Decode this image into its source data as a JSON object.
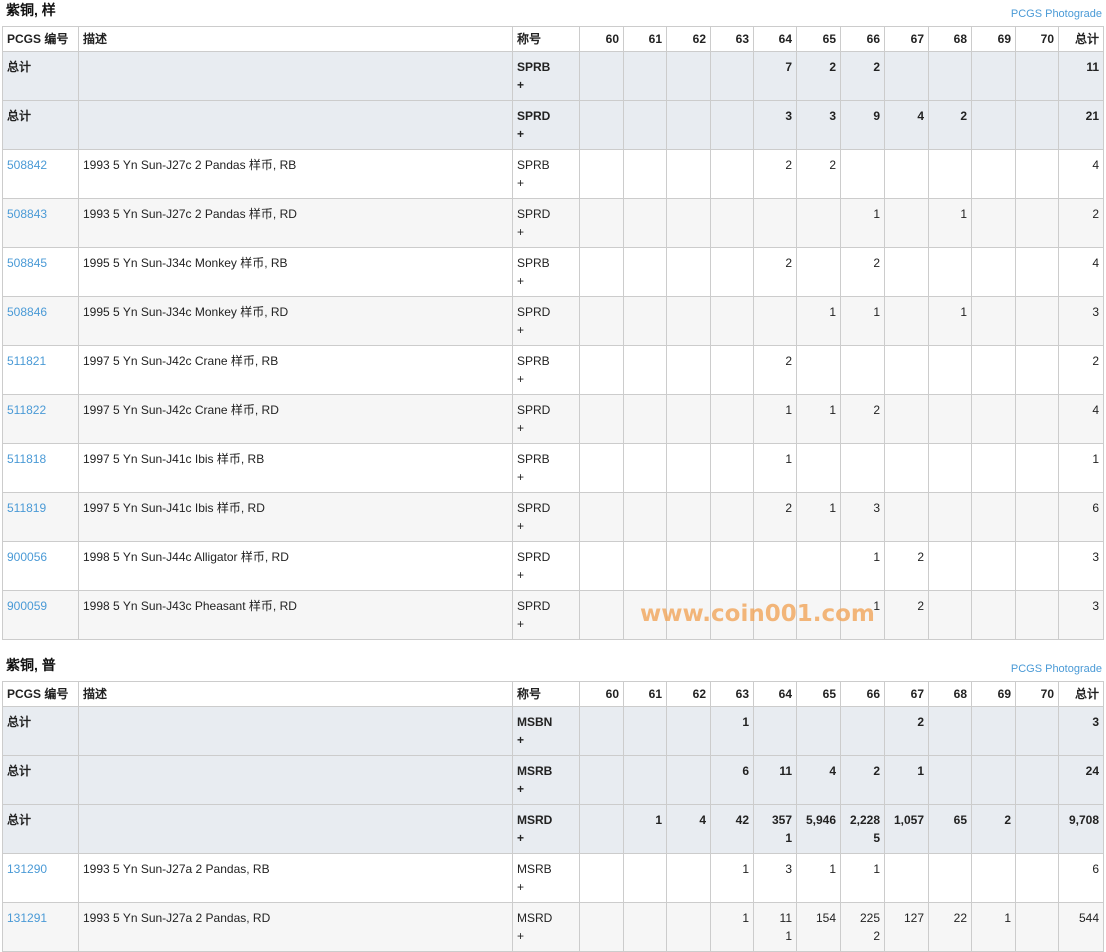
{
  "columns": [
    "PCGS 编号",
    "描述",
    "称号",
    "60",
    "61",
    "62",
    "63",
    "64",
    "65",
    "66",
    "67",
    "68",
    "69",
    "70",
    "总计"
  ],
  "sections": [
    {
      "title": "紫铜, 样",
      "photograde_link": "PCGS Photograde",
      "totals": [
        {
          "label": "总计",
          "designation": "SPRB\n+",
          "grades": [
            "",
            "",
            "",
            "",
            "7",
            "2",
            "2",
            "",
            "",
            "",
            ""
          ],
          "total": "11"
        },
        {
          "label": "总计",
          "designation": "SPRD\n+",
          "grades": [
            "",
            "",
            "",
            "",
            "3",
            "3",
            "9",
            "4",
            "2",
            "",
            ""
          ],
          "total": "21"
        }
      ],
      "rows": [
        {
          "pcgs": "508842",
          "description": "1993 5 Yn Sun-J27c 2 Pandas 样币, RB",
          "designation": "SPRB\n+",
          "grades": [
            "",
            "",
            "",
            "",
            "2",
            "2",
            "",
            "",
            "",
            "",
            ""
          ],
          "total": "4"
        },
        {
          "pcgs": "508843",
          "description": "1993 5 Yn Sun-J27c 2 Pandas 样币, RD",
          "designation": "SPRD\n+",
          "grades": [
            "",
            "",
            "",
            "",
            "",
            "",
            "1",
            "",
            "1",
            "",
            ""
          ],
          "total": "2"
        },
        {
          "pcgs": "508845",
          "description": "1995 5 Yn Sun-J34c Monkey 样币, RB",
          "designation": "SPRB\n+",
          "grades": [
            "",
            "",
            "",
            "",
            "2",
            "",
            "2",
            "",
            "",
            "",
            ""
          ],
          "total": "4"
        },
        {
          "pcgs": "508846",
          "description": "1995 5 Yn Sun-J34c Monkey 样币, RD",
          "designation": "SPRD\n+",
          "grades": [
            "",
            "",
            "",
            "",
            "",
            "1",
            "1",
            "",
            "1",
            "",
            ""
          ],
          "total": "3"
        },
        {
          "pcgs": "511821",
          "description": "1997 5 Yn Sun-J42c Crane 样币, RB",
          "designation": "SPRB\n+",
          "grades": [
            "",
            "",
            "",
            "",
            "2",
            "",
            "",
            "",
            "",
            "",
            ""
          ],
          "total": "2"
        },
        {
          "pcgs": "511822",
          "description": "1997 5 Yn Sun-J42c Crane 样币, RD",
          "designation": "SPRD\n+",
          "grades": [
            "",
            "",
            "",
            "",
            "1",
            "1",
            "2",
            "",
            "",
            "",
            ""
          ],
          "total": "4"
        },
        {
          "pcgs": "511818",
          "description": "1997 5 Yn Sun-J41c Ibis 样币, RB",
          "designation": "SPRB\n+",
          "grades": [
            "",
            "",
            "",
            "",
            "1",
            "",
            "",
            "",
            "",
            "",
            ""
          ],
          "total": "1"
        },
        {
          "pcgs": "511819",
          "description": "1997 5 Yn Sun-J41c Ibis 样币, RD",
          "designation": "SPRD\n+",
          "grades": [
            "",
            "",
            "",
            "",
            "2",
            "1",
            "3",
            "",
            "",
            "",
            ""
          ],
          "total": "6"
        },
        {
          "pcgs": "900056",
          "description": "1998 5 Yn Sun-J44c Alligator 样币, RD",
          "designation": "SPRD\n+",
          "grades": [
            "",
            "",
            "",
            "",
            "",
            "",
            "1",
            "2",
            "",
            "",
            ""
          ],
          "total": "3"
        },
        {
          "pcgs": "900059",
          "description": "1998 5 Yn Sun-J43c Pheasant 样币, RD",
          "designation": "SPRD\n+",
          "grades": [
            "",
            "",
            "",
            "",
            "",
            "",
            "1",
            "2",
            "",
            "",
            ""
          ],
          "total": "3"
        }
      ]
    },
    {
      "title": "紫铜, 普",
      "photograde_link": "PCGS Photograde",
      "totals": [
        {
          "label": "总计",
          "designation": "MSBN\n+",
          "grades": [
            "",
            "",
            "",
            "1",
            "",
            "",
            "",
            "2",
            "",
            "",
            ""
          ],
          "total": "3"
        },
        {
          "label": "总计",
          "designation": "MSRB\n+",
          "grades": [
            "",
            "",
            "",
            "6",
            "11",
            "4",
            "2",
            "1",
            "",
            "",
            ""
          ],
          "total": "24"
        },
        {
          "label": "总计",
          "designation": "MSRD\n+",
          "grades": [
            "",
            "1",
            "4",
            "42",
            "357\n1",
            "5,946",
            "2,228\n5",
            "1,057",
            "65",
            "2",
            ""
          ],
          "total": "9,708"
        }
      ],
      "rows": [
        {
          "pcgs": "131290",
          "description": "1993 5 Yn Sun-J27a 2 Pandas, RB",
          "designation": "MSRB\n+",
          "grades": [
            "",
            "",
            "",
            "1",
            "3",
            "1",
            "1",
            "",
            "",
            "",
            ""
          ],
          "total": "6"
        },
        {
          "pcgs": "131291",
          "description": "1993 5 Yn Sun-J27a 2 Pandas, RD",
          "designation": "MSRD\n+",
          "grades": [
            "",
            "",
            "",
            "1",
            "11\n1",
            "154",
            "225\n2",
            "127",
            "22",
            "1",
            ""
          ],
          "total": "544"
        }
      ]
    }
  ],
  "watermark": "www.coin001.com",
  "colors": {
    "link": "#4a9ad6",
    "total_row_bg": "#e8ecf1",
    "watermark": "#f2a65a"
  }
}
